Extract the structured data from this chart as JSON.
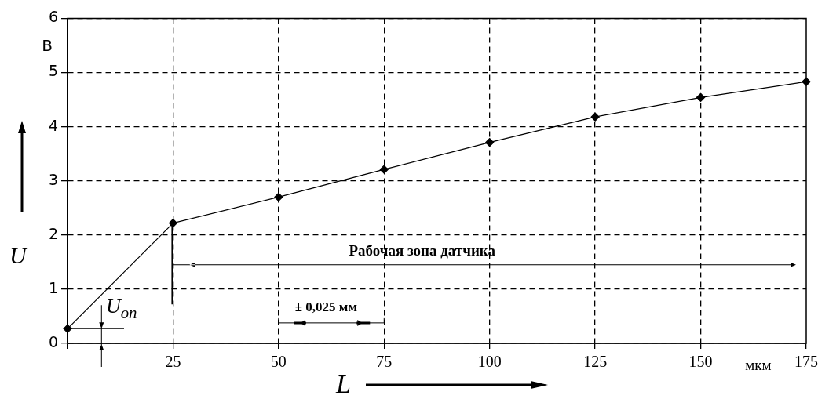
{
  "chart_data": {
    "type": "line",
    "xlabel": "L",
    "ylabel": "U",
    "x": [
      0,
      25,
      50,
      75,
      100,
      125,
      150,
      175
    ],
    "series": [
      {
        "color": "#000000",
        "values": [
          0.27,
          2.22,
          2.7,
          3.21,
          3.71,
          4.18,
          4.54,
          4.83
        ]
      }
    ],
    "xlim": [
      0,
      175
    ],
    "ylim": [
      0,
      6
    ],
    "xticks": [
      {
        "value": 0,
        "label": null
      },
      25,
      50,
      75,
      100,
      125,
      150,
      175
    ],
    "yticks": [
      0,
      1,
      2,
      3,
      4,
      5,
      6
    ],
    "grid": true,
    "marker": "diamond",
    "line_style": "solid",
    "annotations": [
      "B",
      "мкм",
      "Рабочая зона датчика",
      "± 0,025 мм",
      "U$_{on}$"
    ]
  }
}
